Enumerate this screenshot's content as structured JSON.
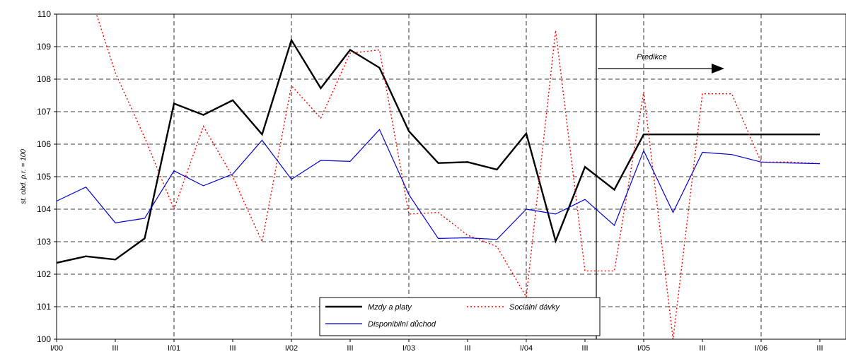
{
  "chart_data": {
    "type": "line",
    "ylabel": "st. obd. p.r. = 100",
    "ylim": [
      100,
      110
    ],
    "yticks": [
      "100",
      "101",
      "102",
      "103",
      "104",
      "105",
      "106",
      "107",
      "108",
      "109",
      "110"
    ],
    "xticks": [
      "I/00",
      "III",
      "I/01",
      "III",
      "I/02",
      "III",
      "I/03",
      "III",
      "I/04",
      "III",
      "I/05",
      "III",
      "I/06",
      "III"
    ],
    "grid": true,
    "legend_position": "bottom-center",
    "annotation": "Predikce",
    "x": [
      "I/00",
      "II/00",
      "III/00",
      "IV/00",
      "I/01",
      "II/01",
      "III/01",
      "IV/01",
      "I/02",
      "II/02",
      "III/02",
      "IV/02",
      "I/03",
      "II/03",
      "III/03",
      "IV/03",
      "I/04",
      "II/04",
      "III/04",
      "IV/04",
      "I/05",
      "II/05",
      "III/05",
      "IV/05",
      "I/06",
      "II/06",
      "III/06"
    ],
    "series": [
      {
        "name": "Mzdy a platy",
        "color": "#000000",
        "style": "solid-thick",
        "values": [
          102.35,
          102.55,
          102.45,
          103.1,
          107.25,
          106.9,
          107.35,
          106.3,
          109.2,
          107.72,
          108.9,
          108.35,
          106.4,
          105.42,
          105.45,
          105.22,
          106.33,
          103.02,
          105.3,
          104.6,
          106.3,
          106.3,
          106.3,
          106.3,
          106.3,
          106.3,
          106.3
        ]
      },
      {
        "name": "Sociální dávky",
        "color": "#ff0000",
        "style": "dotted",
        "values": [
          null,
          111.0,
          108.2,
          106.2,
          104.0,
          106.55,
          105.0,
          103.0,
          107.8,
          106.8,
          108.8,
          108.9,
          103.85,
          103.9,
          103.2,
          102.85,
          101.3,
          109.5,
          102.1,
          102.1,
          107.6,
          100.0,
          107.55,
          107.55,
          105.45,
          105.45,
          105.4
        ]
      },
      {
        "name": "Disponibilní důchod",
        "color": "#0000cc",
        "style": "solid-thin",
        "values": [
          104.25,
          104.68,
          103.58,
          103.72,
          105.18,
          104.72,
          105.08,
          106.12,
          104.92,
          105.5,
          105.47,
          106.45,
          104.45,
          103.1,
          103.12,
          103.07,
          104.0,
          103.85,
          104.3,
          103.5,
          105.8,
          103.9,
          105.75,
          105.68,
          105.45,
          105.42,
          105.4
        ]
      }
    ]
  }
}
